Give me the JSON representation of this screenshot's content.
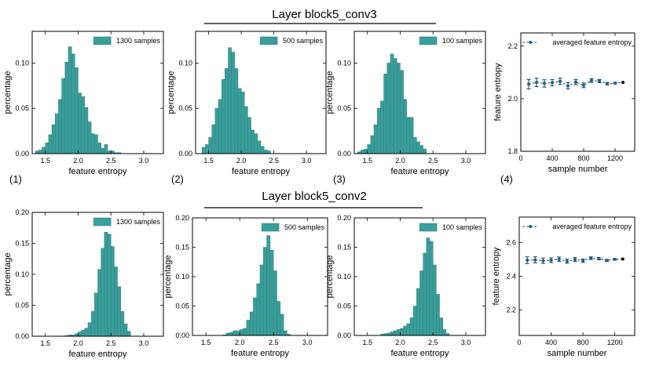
{
  "rows": [
    {
      "title": "Layer  block5_conv3"
    },
    {
      "title": "Layer  block5_conv2"
    }
  ],
  "panel_labels": [
    "(1)",
    "(2)",
    "(3)",
    "(4)"
  ],
  "colors": {
    "bar_fill": "#3a9e9a",
    "bar_edge": "#2d7f7b",
    "line": "#1f5f8b",
    "frame": "#000000",
    "error_bar": "#0f3d5c"
  },
  "chart_data": [
    {
      "id": "r0-1300",
      "type": "bar",
      "row": 0,
      "col": 0,
      "xlabel": "feature entropy",
      "ylabel": "percentage",
      "xlim": [
        1.3,
        3.3
      ],
      "ylim": [
        0,
        0.135
      ],
      "bin_width": 0.05,
      "bin_start": 1.35,
      "xticks": [
        1.5,
        2.0,
        2.5,
        3.0
      ],
      "yticks": [
        0.0,
        0.05,
        0.1
      ],
      "legend": {
        "label": "1300 samples",
        "position": "top-right"
      },
      "values": [
        0.003,
        0.004,
        0.007,
        0.012,
        0.021,
        0.032,
        0.044,
        0.06,
        0.083,
        0.101,
        0.118,
        0.11,
        0.095,
        0.067,
        0.063,
        0.051,
        0.035,
        0.022,
        0.021,
        0.012,
        0.006,
        0.01,
        0.003,
        0.003,
        0.001,
        0.001
      ]
    },
    {
      "id": "r0-500",
      "type": "bar",
      "row": 0,
      "col": 1,
      "xlabel": "feature entropy",
      "ylabel": "percentage",
      "xlim": [
        1.3,
        3.3
      ],
      "ylim": [
        0,
        0.135
      ],
      "bin_width": 0.05,
      "bin_start": 1.4,
      "xticks": [
        1.5,
        2.0,
        2.5,
        3.0
      ],
      "yticks": [
        0.0,
        0.05,
        0.1
      ],
      "legend": {
        "label": "500 samples",
        "position": "top-right"
      },
      "values": [
        0.007,
        0.01,
        0.018,
        0.032,
        0.05,
        0.06,
        0.082,
        0.094,
        0.117,
        0.112,
        0.094,
        0.072,
        0.068,
        0.052,
        0.04,
        0.026,
        0.022,
        0.014,
        0.008,
        0.004,
        0.003
      ]
    },
    {
      "id": "r0-100",
      "type": "bar",
      "row": 0,
      "col": 2,
      "xlabel": "feature entropy",
      "ylabel": "percentage",
      "xlim": [
        1.3,
        3.3
      ],
      "ylim": [
        0,
        0.135
      ],
      "bin_width": 0.05,
      "bin_start": 1.35,
      "xticks": [
        1.5,
        2.0,
        2.5,
        3.0
      ],
      "yticks": [
        0.0,
        0.05,
        0.1
      ],
      "legend": {
        "label": "100 samples",
        "position": "top-right"
      },
      "values": [
        0.002,
        0.004,
        0.005,
        0.01,
        0.02,
        0.032,
        0.05,
        0.058,
        0.088,
        0.1,
        0.11,
        0.105,
        0.1,
        0.092,
        0.06,
        0.04,
        0.04,
        0.018,
        0.013,
        0.009,
        0.005
      ]
    },
    {
      "id": "r0-avg",
      "type": "line",
      "row": 0,
      "col": 3,
      "xlabel": "sample number",
      "ylabel": "feature entropy",
      "xlim": [
        0,
        1450
      ],
      "ylim": [
        1.8,
        2.25
      ],
      "xticks": [
        0,
        400,
        800,
        1200
      ],
      "yticks": [
        1.8,
        2.0,
        2.2
      ],
      "legend": {
        "label": "averaged feature entropy",
        "position": "top-right"
      },
      "x": [
        100,
        200,
        300,
        400,
        500,
        600,
        700,
        800,
        900,
        1000,
        1100,
        1200,
        1300
      ],
      "y": [
        2.055,
        2.062,
        2.058,
        2.061,
        2.066,
        2.049,
        2.063,
        2.051,
        2.069,
        2.067,
        2.057,
        2.059,
        2.062
      ],
      "err": [
        0.018,
        0.016,
        0.014,
        0.012,
        0.012,
        0.012,
        0.01,
        0.009,
        0.007,
        0.006,
        0.005,
        0.003,
        0.0
      ]
    },
    {
      "id": "r1-1300",
      "type": "bar",
      "row": 1,
      "col": 0,
      "xlabel": "feature entropy",
      "ylabel": "percentage",
      "xlim": [
        1.3,
        3.3
      ],
      "ylim": [
        0,
        0.2
      ],
      "bin_width": 0.05,
      "bin_start": 1.8,
      "xticks": [
        1.5,
        2.0,
        2.5,
        3.0
      ],
      "yticks": [
        0.0,
        0.05,
        0.1,
        0.15,
        0.2
      ],
      "legend": {
        "label": "1300 samples",
        "position": "top-right"
      },
      "values": [
        0.001,
        0.002,
        0.002,
        0.004,
        0.007,
        0.01,
        0.013,
        0.022,
        0.04,
        0.07,
        0.108,
        0.142,
        0.168,
        0.165,
        0.145,
        0.112,
        0.08,
        0.04,
        0.02,
        0.008
      ]
    },
    {
      "id": "r1-500",
      "type": "bar",
      "row": 1,
      "col": 1,
      "xlabel": "feature entropy",
      "ylabel": "percentage",
      "xlim": [
        1.3,
        3.3
      ],
      "ylim": [
        0,
        0.2
      ],
      "bin_width": 0.05,
      "bin_start": 1.75,
      "xticks": [
        1.5,
        2.0,
        2.5,
        3.0
      ],
      "yticks": [
        0.0,
        0.05,
        0.1,
        0.15,
        0.2
      ],
      "legend": {
        "label": "500 samples",
        "position": "top-right"
      },
      "values": [
        0.001,
        0.004,
        0.005,
        0.008,
        0.008,
        0.01,
        0.012,
        0.026,
        0.04,
        0.064,
        0.088,
        0.12,
        0.15,
        0.17,
        0.145,
        0.11,
        0.058,
        0.036,
        0.008,
        0.002
      ]
    },
    {
      "id": "r1-100",
      "type": "bar",
      "row": 1,
      "col": 2,
      "xlabel": "feature entropy",
      "ylabel": "percentage",
      "xlim": [
        1.3,
        3.3
      ],
      "ylim": [
        0,
        0.2
      ],
      "bin_width": 0.05,
      "bin_start": 1.7,
      "xticks": [
        1.5,
        2.0,
        2.5,
        3.0
      ],
      "yticks": [
        0.0,
        0.05,
        0.1,
        0.15,
        0.2
      ],
      "legend": {
        "label": "100 samples",
        "position": "top-right"
      },
      "values": [
        0.002,
        0.003,
        0.004,
        0.006,
        0.008,
        0.01,
        0.012,
        0.016,
        0.02,
        0.03,
        0.05,
        0.08,
        0.11,
        0.14,
        0.166,
        0.16,
        0.12,
        0.07,
        0.03,
        0.01,
        0.003
      ]
    },
    {
      "id": "r1-avg",
      "type": "line",
      "row": 1,
      "col": 3,
      "xlabel": "sample number",
      "ylabel": "feature entropy",
      "xlim": [
        0,
        1450
      ],
      "ylim": [
        2.05,
        2.75
      ],
      "xticks": [
        0,
        400,
        800,
        1200
      ],
      "yticks": [
        2.2,
        2.4,
        2.6
      ],
      "legend": {
        "label": "averaged feature entropy",
        "position": "top-right"
      },
      "x": [
        100,
        200,
        300,
        400,
        500,
        600,
        700,
        800,
        900,
        1000,
        1100,
        1200,
        1300
      ],
      "y": [
        2.495,
        2.497,
        2.492,
        2.495,
        2.501,
        2.489,
        2.499,
        2.492,
        2.507,
        2.504,
        2.494,
        2.5,
        2.502
      ],
      "err": [
        0.02,
        0.018,
        0.016,
        0.014,
        0.013,
        0.012,
        0.011,
        0.01,
        0.008,
        0.007,
        0.006,
        0.004,
        0.0
      ]
    }
  ]
}
